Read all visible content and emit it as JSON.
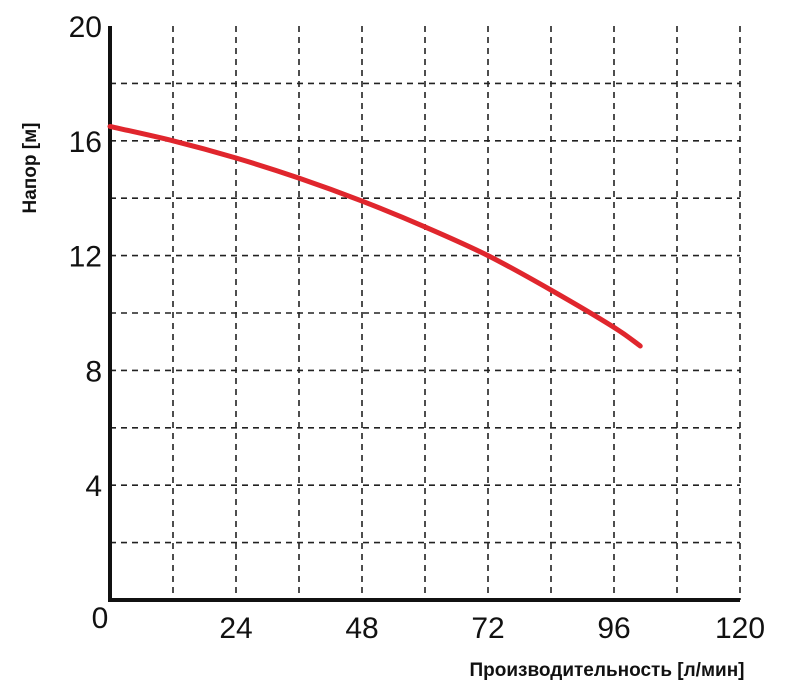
{
  "chart_data": {
    "type": "line",
    "xlabel": "Производительность [л/мин]",
    "ylabel": "Напор [м]",
    "xlim": [
      0,
      120
    ],
    "ylim": [
      0,
      20
    ],
    "x_ticks": [
      0,
      24,
      48,
      72,
      96,
      120
    ],
    "x_tick_labels": [
      "0",
      "24",
      "48",
      "72",
      "96",
      "120"
    ],
    "y_ticks": [
      4,
      8,
      12,
      16,
      20
    ],
    "y_tick_labels": [
      "4",
      "8",
      "12",
      "16",
      "20"
    ],
    "x_gridlines": [
      12,
      24,
      36,
      48,
      60,
      72,
      84,
      96,
      108,
      120
    ],
    "y_gridlines": [
      2,
      4,
      6,
      8,
      10,
      12,
      14,
      16,
      18
    ],
    "grid": "dashed",
    "series": [
      {
        "color": "#e0262d",
        "x": [
          0,
          12,
          24,
          36,
          48,
          60,
          72,
          84,
          96,
          101
        ],
        "y": [
          16.5,
          16.0,
          15.4,
          14.7,
          13.9,
          13.0,
          12.0,
          10.8,
          9.5,
          8.85
        ]
      }
    ]
  }
}
